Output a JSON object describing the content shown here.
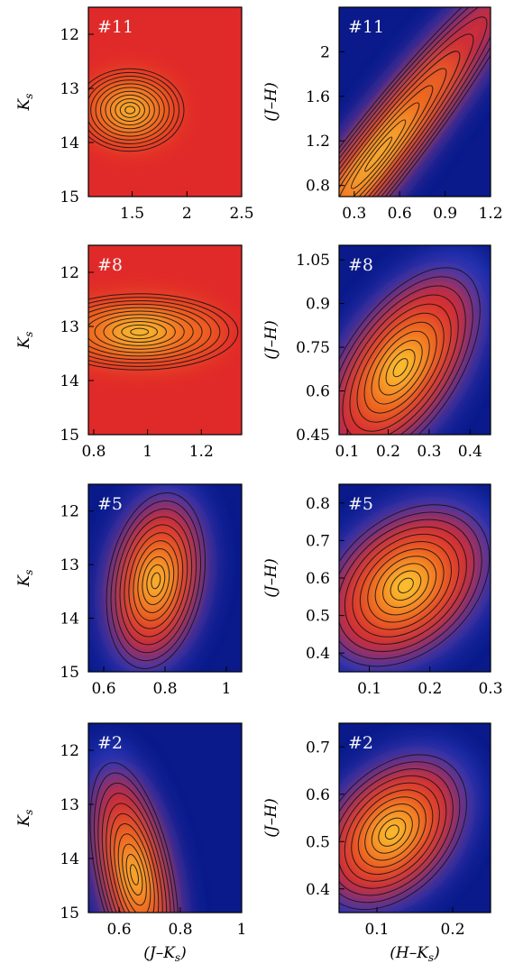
{
  "chart_data": [
    {
      "type": "heatmap",
      "panel": "#11",
      "tag": "#11",
      "xlabel": "",
      "ylabel": "K_s",
      "xlim": [
        1.1,
        2.5
      ],
      "ylim": [
        15,
        11.5
      ],
      "ydir": "inverted",
      "xticks": [
        1.5,
        2,
        2.5
      ],
      "xtick_labels": [
        "1.5",
        "2",
        "2.5"
      ],
      "yticks": [
        12,
        13,
        14,
        15
      ],
      "ytick_labels": [
        "12",
        "13",
        "14",
        "15"
      ],
      "density_peak": {
        "x": 1.48,
        "y": 13.4
      },
      "background": "red-orange",
      "contours": true
    },
    {
      "type": "heatmap",
      "panel": "#11",
      "tag": "#11",
      "xlabel": "",
      "ylabel": "(J–H)",
      "xlim": [
        0.2,
        1.2
      ],
      "ylim": [
        0.7,
        2.4
      ],
      "xticks": [
        0.3,
        0.6,
        0.9,
        1.2
      ],
      "xtick_labels": [
        "0.3",
        "0.6",
        "0.9",
        "1.2"
      ],
      "yticks": [
        0.8,
        1.2,
        1.6,
        2
      ],
      "ytick_labels": [
        "0.8",
        "1.2",
        "1.6",
        "2"
      ],
      "density_peak": {
        "x": 0.46,
        "y": 1.08
      },
      "density_ridge": [
        [
          0.3,
          0.85
        ],
        [
          1.2,
          2.45
        ]
      ],
      "background": "blue",
      "contours": true
    },
    {
      "type": "heatmap",
      "panel": "#8",
      "tag": "#8",
      "xlabel": "",
      "ylabel": "K_s",
      "xlim": [
        0.78,
        1.35
      ],
      "ylim": [
        15,
        11.5
      ],
      "ydir": "inverted",
      "xticks": [
        0.8,
        1,
        1.2
      ],
      "xtick_labels": [
        "0.8",
        "1",
        "1.2"
      ],
      "yticks": [
        12,
        13,
        14,
        15
      ],
      "ytick_labels": [
        "12",
        "13",
        "14",
        "15"
      ],
      "density_peak": {
        "x": 0.97,
        "y": 13.1
      },
      "background": "orange-red",
      "contours": true
    },
    {
      "type": "heatmap",
      "panel": "#8",
      "tag": "#8",
      "xlabel": "",
      "ylabel": "(J–H)",
      "xlim": [
        0.08,
        0.45
      ],
      "ylim": [
        0.45,
        1.1
      ],
      "xticks": [
        0.1,
        0.2,
        0.3,
        0.4
      ],
      "xtick_labels": [
        "0.1",
        "0.2",
        "0.3",
        "0.4"
      ],
      "yticks": [
        0.45,
        0.6,
        0.75,
        0.9,
        1.05
      ],
      "ytick_labels": [
        "0.45",
        "0.6",
        "0.75",
        "0.9",
        "1.05"
      ],
      "density_peak": {
        "x": 0.23,
        "y": 0.68
      },
      "background": "blue",
      "contours": true
    },
    {
      "type": "heatmap",
      "panel": "#5",
      "tag": "#5",
      "xlabel": "",
      "ylabel": "K_s",
      "xlim": [
        0.55,
        1.05
      ],
      "ylim": [
        15,
        11.5
      ],
      "ydir": "inverted",
      "xticks": [
        0.6,
        0.8,
        1
      ],
      "xtick_labels": [
        "0.6",
        "0.8",
        "1"
      ],
      "yticks": [
        12,
        13,
        14,
        15
      ],
      "ytick_labels": [
        "12",
        "13",
        "14",
        "15"
      ],
      "density_peak": {
        "x": 0.77,
        "y": 13.3
      },
      "background": "blue",
      "contours": true
    },
    {
      "type": "heatmap",
      "panel": "#5",
      "tag": "#5",
      "xlabel": "",
      "ylabel": "(J–H)",
      "xlim": [
        0.05,
        0.3
      ],
      "ylim": [
        0.35,
        0.85
      ],
      "xticks": [
        0.1,
        0.2,
        0.3
      ],
      "xtick_labels": [
        "0.1",
        "0.2",
        "0.3"
      ],
      "yticks": [
        0.4,
        0.5,
        0.6,
        0.7,
        0.8
      ],
      "ytick_labels": [
        "0.4",
        "0.5",
        "0.6",
        "0.7",
        "0.8"
      ],
      "density_peak": {
        "x": 0.16,
        "y": 0.58
      },
      "background": "blue",
      "contours": true
    },
    {
      "type": "heatmap",
      "panel": "#2",
      "tag": "#2",
      "xlabel": "(J–K_s)",
      "ylabel": "K_s",
      "xlim": [
        0.5,
        1.0
      ],
      "ylim": [
        15,
        11.5
      ],
      "ydir": "inverted",
      "xticks": [
        0.6,
        0.8,
        1
      ],
      "xtick_labels": [
        "0.6",
        "0.8",
        "1"
      ],
      "yticks": [
        12,
        13,
        14,
        15
      ],
      "ytick_labels": [
        "12",
        "13",
        "14",
        "15"
      ],
      "density_peak": {
        "x": 0.65,
        "y": 14.3
      },
      "background": "blue",
      "contours": true
    },
    {
      "type": "heatmap",
      "panel": "#2",
      "tag": "#2",
      "xlabel": "(H–K_s)",
      "ylabel": "(J–H)",
      "xlim": [
        0.05,
        0.25
      ],
      "ylim": [
        0.35,
        0.75
      ],
      "xticks": [
        0.1,
        0.2
      ],
      "xtick_labels": [
        "0.1",
        "0.2"
      ],
      "yticks": [
        0.4,
        0.5,
        0.6,
        0.7
      ],
      "ytick_labels": [
        "0.4",
        "0.5",
        "0.6",
        "0.7"
      ],
      "density_peak": {
        "x": 0.12,
        "y": 0.52
      },
      "background": "blue",
      "contours": true
    }
  ],
  "colors": {
    "cold": "#0a1a8a",
    "cool": "#3040c8",
    "warm": "#e02a2a",
    "hot": "#f57a1e",
    "peak": "#ffe83a",
    "contour": "#151515"
  }
}
